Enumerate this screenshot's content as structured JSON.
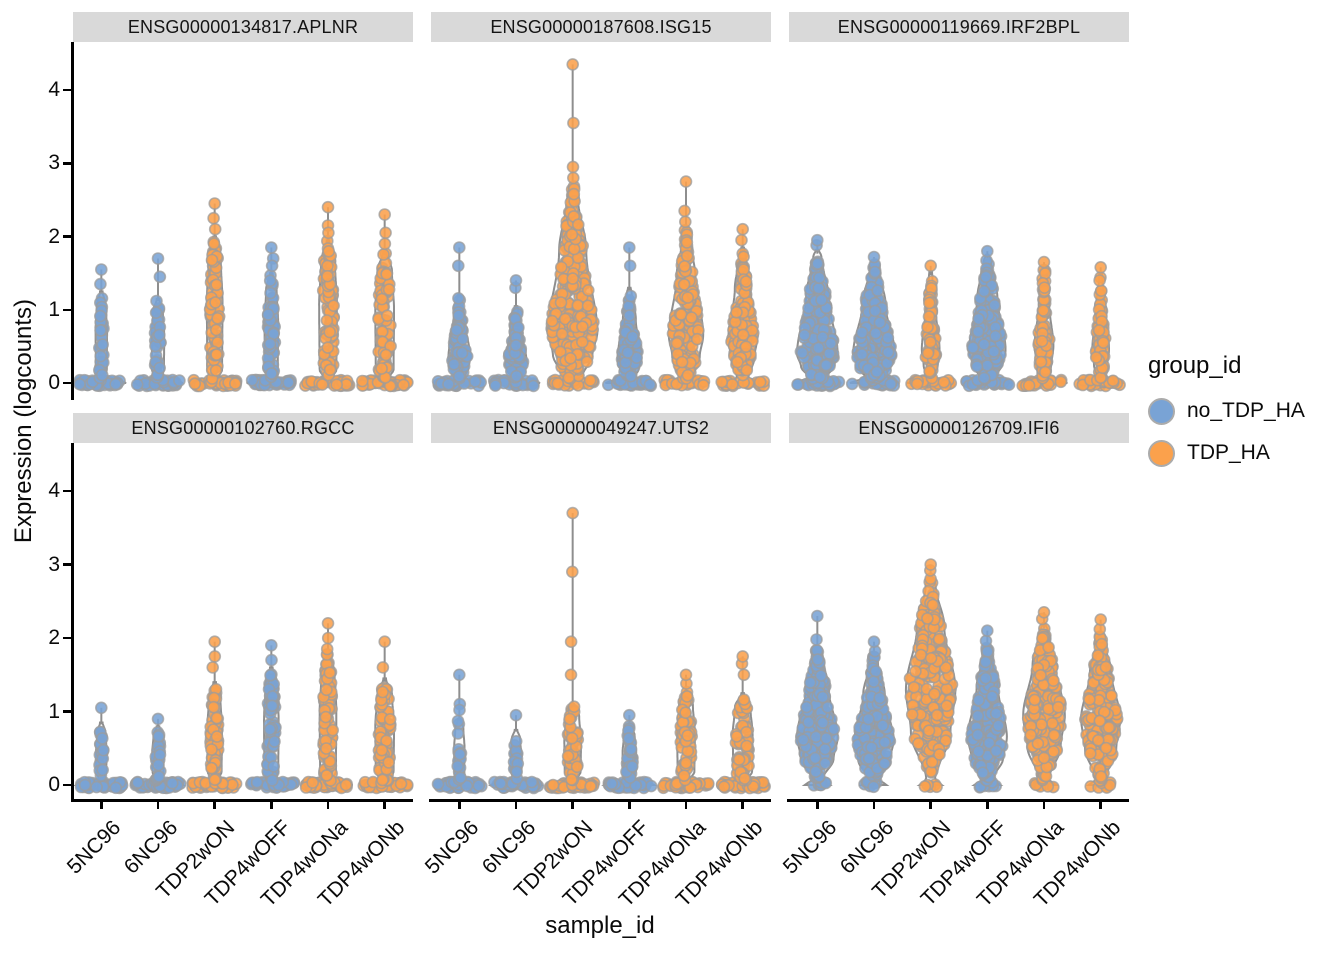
{
  "chart_data": {
    "type": "violin",
    "title": "",
    "ylabel": "Expression (logcounts)",
    "xlabel": "sample_id",
    "yticks": [
      0,
      1,
      2,
      3,
      4
    ],
    "ylim": [
      0,
      4.5
    ],
    "grid": false,
    "legend_position": "right",
    "samples": [
      "5NC96",
      "6NC96",
      "TDP2wON",
      "TDP4wOFF",
      "TDP4wONa",
      "TDP4wONb"
    ],
    "sample_groups": {
      "5NC96": "no_TDP_HA",
      "6NC96": "no_TDP_HA",
      "TDP2wON": "TDP_HA",
      "TDP4wOFF": "no_TDP_HA",
      "TDP4wONa": "TDP_HA",
      "TDP4wONb": "TDP_HA"
    },
    "legend": {
      "title": "group_id",
      "items": [
        {
          "label": "no_TDP_HA",
          "color": "#79A3D5"
        },
        {
          "label": "TDP_HA",
          "color": "#FBA14C"
        }
      ]
    },
    "style": {
      "strip_bg": "#D9D9D9",
      "violin_fill": "#FAFAFA",
      "violin_stroke": "#8E8E8E",
      "point_stroke": "#9C9C9C",
      "axis_color": "#000000",
      "group_colors": {
        "no_TDP_HA": "#79A3D5",
        "TDP_HA": "#FBA14C"
      }
    },
    "facets": [
      {
        "gene": "ENSG00000134817.APLNR",
        "row": 0,
        "col": 0,
        "violins": [
          {
            "sample": "5NC96",
            "group": "no_TDP_HA",
            "shape": "stem",
            "max": 1.55,
            "stem_points": [
              1.35
            ],
            "body_top": 1.25,
            "body_width": 0.22,
            "peak": 0.3,
            "base_width": 0.95,
            "n": 28,
            "n0": 40
          },
          {
            "sample": "6NC96",
            "group": "no_TDP_HA",
            "shape": "stem",
            "max": 1.7,
            "stem_points": [
              1.45
            ],
            "body_top": 1.15,
            "body_width": 0.24,
            "peak": 0.3,
            "base_width": 0.95,
            "n": 32,
            "n0": 40
          },
          {
            "sample": "TDP2wON",
            "group": "TDP_HA",
            "shape": "stem",
            "max": 2.45,
            "stem_points": [
              2.25,
              2.1
            ],
            "body_top": 2.0,
            "body_width": 0.3,
            "peak": 0.5,
            "base_width": 0.95,
            "n": 80,
            "n0": 42
          },
          {
            "sample": "TDP4wOFF",
            "group": "no_TDP_HA",
            "shape": "stem",
            "max": 1.85,
            "stem_points": [
              1.7,
              1.6
            ],
            "body_top": 1.5,
            "body_width": 0.26,
            "peak": 0.4,
            "base_width": 0.95,
            "n": 55,
            "n0": 42
          },
          {
            "sample": "TDP4wONa",
            "group": "TDP_HA",
            "shape": "stem",
            "max": 2.4,
            "stem_points": [
              2.15,
              2.05
            ],
            "body_top": 1.95,
            "body_width": 0.34,
            "peak": 0.5,
            "base_width": 0.95,
            "n": 85,
            "n0": 42
          },
          {
            "sample": "TDP4wONb",
            "group": "TDP_HA",
            "shape": "stem",
            "max": 2.3,
            "stem_points": [
              2.05,
              1.9
            ],
            "body_top": 1.8,
            "body_width": 0.36,
            "peak": 0.5,
            "base_width": 0.95,
            "n": 70,
            "n0": 42
          }
        ]
      },
      {
        "gene": "ENSG00000187608.ISG15",
        "row": 0,
        "col": 1,
        "violins": [
          {
            "sample": "5NC96",
            "group": "no_TDP_HA",
            "shape": "tear",
            "max": 1.85,
            "stem_points": [
              1.6
            ],
            "body_top": 1.2,
            "body_width": 0.42,
            "peak": 0.35,
            "base_width": 0.92,
            "n": 80,
            "n0": 30
          },
          {
            "sample": "6NC96",
            "group": "no_TDP_HA",
            "shape": "tear",
            "max": 1.4,
            "stem_points": [
              1.3
            ],
            "body_top": 1.05,
            "body_width": 0.4,
            "peak": 0.3,
            "base_width": 0.92,
            "n": 70,
            "n0": 30
          },
          {
            "sample": "TDP2wON",
            "group": "TDP_HA",
            "shape": "tear",
            "max": 4.35,
            "stem_points": [
              3.55,
              2.95,
              2.8
            ],
            "body_top": 2.7,
            "body_width": 0.95,
            "peak": 0.7,
            "base_width": 0.88,
            "n": 300,
            "n0": 20
          },
          {
            "sample": "TDP4wOFF",
            "group": "no_TDP_HA",
            "shape": "tear",
            "max": 1.85,
            "stem_points": [
              1.6
            ],
            "body_top": 1.3,
            "body_width": 0.45,
            "peak": 0.35,
            "base_width": 0.92,
            "n": 90,
            "n0": 30
          },
          {
            "sample": "TDP4wONa",
            "group": "TDP_HA",
            "shape": "tear",
            "max": 2.75,
            "stem_points": [
              2.35,
              2.2
            ],
            "body_top": 2.1,
            "body_width": 0.66,
            "peak": 0.65,
            "base_width": 0.9,
            "n": 160,
            "n0": 22
          },
          {
            "sample": "TDP4wONb",
            "group": "TDP_HA",
            "shape": "tear",
            "max": 2.1,
            "stem_points": [
              1.95
            ],
            "body_top": 1.85,
            "body_width": 0.55,
            "peak": 0.6,
            "base_width": 0.9,
            "n": 120,
            "n0": 22
          }
        ]
      },
      {
        "gene": "ENSG00000119669.IRF2BPL",
        "row": 0,
        "col": 2,
        "violins": [
          {
            "sample": "5NC96",
            "group": "no_TDP_HA",
            "shape": "tear",
            "max": 1.95,
            "stem_points": [
              1.88
            ],
            "body_top": 1.82,
            "body_width": 0.78,
            "peak": 0.4,
            "base_width": 0.92,
            "n": 210,
            "n0": 30
          },
          {
            "sample": "6NC96",
            "group": "no_TDP_HA",
            "shape": "tear",
            "max": 1.72,
            "stem_points": [],
            "body_top": 1.65,
            "body_width": 0.8,
            "peak": 0.4,
            "base_width": 0.92,
            "n": 215,
            "n0": 30
          },
          {
            "sample": "TDP2wON",
            "group": "TDP_HA",
            "shape": "tear",
            "max": 1.6,
            "stem_points": [],
            "body_top": 1.52,
            "body_width": 0.34,
            "peak": 0.45,
            "base_width": 0.9,
            "n": 70,
            "n0": 26
          },
          {
            "sample": "TDP4wOFF",
            "group": "no_TDP_HA",
            "shape": "tear",
            "max": 1.8,
            "stem_points": [],
            "body_top": 1.75,
            "body_width": 0.7,
            "peak": 0.45,
            "base_width": 0.92,
            "n": 195,
            "n0": 28
          },
          {
            "sample": "TDP4wONa",
            "group": "TDP_HA",
            "shape": "tear",
            "max": 1.65,
            "stem_points": [],
            "body_top": 1.57,
            "body_width": 0.36,
            "peak": 0.5,
            "base_width": 0.9,
            "n": 80,
            "n0": 26
          },
          {
            "sample": "TDP4wONb",
            "group": "TDP_HA",
            "shape": "tear",
            "max": 1.58,
            "stem_points": [],
            "body_top": 1.5,
            "body_width": 0.32,
            "peak": 0.45,
            "base_width": 0.9,
            "n": 72,
            "n0": 26
          }
        ]
      },
      {
        "gene": "ENSG00000102760.RGCC",
        "row": 1,
        "col": 0,
        "violins": [
          {
            "sample": "5NC96",
            "group": "no_TDP_HA",
            "shape": "stem",
            "max": 1.05,
            "stem_points": [],
            "body_top": 0.85,
            "body_width": 0.2,
            "peak": 0.3,
            "base_width": 0.95,
            "n": 20,
            "n0": 42
          },
          {
            "sample": "6NC96",
            "group": "no_TDP_HA",
            "shape": "stem",
            "max": 0.9,
            "stem_points": [],
            "body_top": 0.8,
            "body_width": 0.22,
            "peak": 0.3,
            "base_width": 0.95,
            "n": 22,
            "n0": 42
          },
          {
            "sample": "TDP2wON",
            "group": "TDP_HA",
            "shape": "stem",
            "max": 1.95,
            "stem_points": [
              1.75,
              1.6
            ],
            "body_top": 1.4,
            "body_width": 0.28,
            "peak": 0.4,
            "base_width": 0.95,
            "n": 60,
            "n0": 44
          },
          {
            "sample": "TDP4wOFF",
            "group": "no_TDP_HA",
            "shape": "stem",
            "max": 1.9,
            "stem_points": [
              1.7
            ],
            "body_top": 1.6,
            "body_width": 0.28,
            "peak": 0.4,
            "base_width": 0.95,
            "n": 70,
            "n0": 44
          },
          {
            "sample": "TDP4wONa",
            "group": "TDP_HA",
            "shape": "stem",
            "max": 2.2,
            "stem_points": [
              2.0,
              1.85
            ],
            "body_top": 1.8,
            "body_width": 0.32,
            "peak": 0.5,
            "base_width": 0.95,
            "n": 80,
            "n0": 44
          },
          {
            "sample": "TDP4wONb",
            "group": "TDP_HA",
            "shape": "stem",
            "max": 1.95,
            "stem_points": [
              1.6
            ],
            "body_top": 1.45,
            "body_width": 0.36,
            "peak": 0.4,
            "base_width": 0.95,
            "n": 72,
            "n0": 44
          }
        ]
      },
      {
        "gene": "ENSG00000049247.UTS2",
        "row": 1,
        "col": 1,
        "violins": [
          {
            "sample": "5NC96",
            "group": "no_TDP_HA",
            "shape": "stem",
            "max": 1.5,
            "stem_points": [
              1.1,
              1.02
            ],
            "body_top": 0.9,
            "body_width": 0.2,
            "peak": 0.3,
            "base_width": 0.95,
            "n": 16,
            "n0": 42
          },
          {
            "sample": "6NC96",
            "group": "no_TDP_HA",
            "shape": "stem",
            "max": 0.95,
            "stem_points": [],
            "body_top": 0.75,
            "body_width": 0.2,
            "peak": 0.3,
            "base_width": 0.95,
            "n": 15,
            "n0": 42
          },
          {
            "sample": "TDP2wON",
            "group": "TDP_HA",
            "shape": "stem",
            "max": 3.7,
            "stem_points": [
              2.9,
              1.95,
              1.5
            ],
            "body_top": 1.1,
            "body_width": 0.32,
            "peak": 0.4,
            "base_width": 0.95,
            "n": 55,
            "n0": 44
          },
          {
            "sample": "TDP4wOFF",
            "group": "no_TDP_HA",
            "shape": "stem",
            "max": 0.95,
            "stem_points": [],
            "body_top": 0.8,
            "body_width": 0.26,
            "peak": 0.3,
            "base_width": 0.95,
            "n": 40,
            "n0": 44
          },
          {
            "sample": "TDP4wONa",
            "group": "TDP_HA",
            "shape": "stem",
            "max": 1.5,
            "stem_points": [
              1.38
            ],
            "body_top": 1.28,
            "body_width": 0.34,
            "peak": 0.4,
            "base_width": 0.95,
            "n": 62,
            "n0": 44
          },
          {
            "sample": "TDP4wONb",
            "group": "TDP_HA",
            "shape": "stem",
            "max": 1.75,
            "stem_points": [
              1.65,
              1.5
            ],
            "body_top": 1.25,
            "body_width": 0.38,
            "peak": 0.4,
            "base_width": 0.95,
            "n": 58,
            "n0": 44
          }
        ]
      },
      {
        "gene": "ENSG00000126709.IFI6",
        "row": 1,
        "col": 2,
        "violins": [
          {
            "sample": "5NC96",
            "group": "no_TDP_HA",
            "shape": "tear",
            "max": 2.3,
            "stem_points": [
              1.98
            ],
            "body_top": 1.88,
            "body_width": 0.78,
            "peak": 0.65,
            "base_width": 0.48,
            "n": 230,
            "n0": 8
          },
          {
            "sample": "6NC96",
            "group": "no_TDP_HA",
            "shape": "tear",
            "max": 1.95,
            "stem_points": [
              1.82
            ],
            "body_top": 1.76,
            "body_width": 0.75,
            "peak": 0.6,
            "base_width": 0.48,
            "n": 225,
            "n0": 8
          },
          {
            "sample": "TDP2wON",
            "group": "TDP_HA",
            "shape": "tear",
            "max": 3.0,
            "stem_points": [
              2.92
            ],
            "body_top": 2.86,
            "body_width": 0.95,
            "peak": 1.3,
            "base_width": 0.42,
            "n": 285,
            "n0": 5
          },
          {
            "sample": "TDP4wOFF",
            "group": "no_TDP_HA",
            "shape": "tear",
            "max": 2.1,
            "stem_points": [
              1.96
            ],
            "body_top": 1.88,
            "body_width": 0.75,
            "peak": 0.65,
            "base_width": 0.5,
            "n": 230,
            "n0": 9
          },
          {
            "sample": "TDP4wONa",
            "group": "TDP_HA",
            "shape": "tear",
            "max": 2.35,
            "stem_points": [
              2.26
            ],
            "body_top": 2.2,
            "body_width": 0.8,
            "peak": 0.95,
            "base_width": 0.46,
            "n": 250,
            "n0": 7
          },
          {
            "sample": "TDP4wONb",
            "group": "TDP_HA",
            "shape": "tear",
            "max": 2.25,
            "stem_points": [
              2.12
            ],
            "body_top": 2.05,
            "body_width": 0.75,
            "peak": 0.9,
            "base_width": 0.46,
            "n": 240,
            "n0": 7
          }
        ]
      }
    ]
  }
}
